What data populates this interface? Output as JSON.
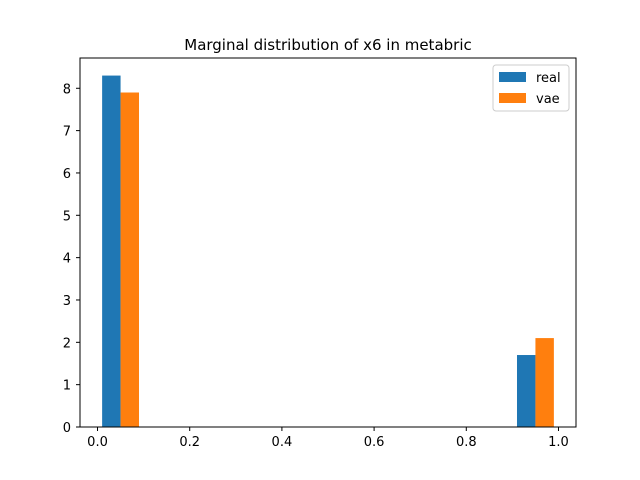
{
  "chart_data": {
    "type": "bar",
    "title": "Marginal distribution of x6 in metabric",
    "xlabel": "",
    "ylabel": "",
    "xlim": [
      -0.038,
      1.038
    ],
    "ylim": [
      0,
      8.715
    ],
    "x_ticks": [
      0.0,
      0.2,
      0.4,
      0.6,
      0.8,
      1.0
    ],
    "x_tick_labels": [
      "0.0",
      "0.2",
      "0.4",
      "0.6",
      "0.8",
      "1.0"
    ],
    "y_ticks": [
      0,
      1,
      2,
      3,
      4,
      5,
      6,
      7,
      8
    ],
    "y_tick_labels": [
      "0",
      "1",
      "2",
      "3",
      "4",
      "5",
      "6",
      "7",
      "8"
    ],
    "grid": false,
    "legend_position": "top-right",
    "bar_width": 0.04,
    "series": [
      {
        "name": "real",
        "color": "#1f77b4",
        "bars": [
          {
            "x": 0.01,
            "value": 8.3
          },
          {
            "x": 0.91,
            "value": 1.7
          }
        ]
      },
      {
        "name": "vae",
        "color": "#ff7f0e",
        "bars": [
          {
            "x": 0.05,
            "value": 7.9
          },
          {
            "x": 0.95,
            "value": 2.1
          }
        ]
      }
    ]
  }
}
